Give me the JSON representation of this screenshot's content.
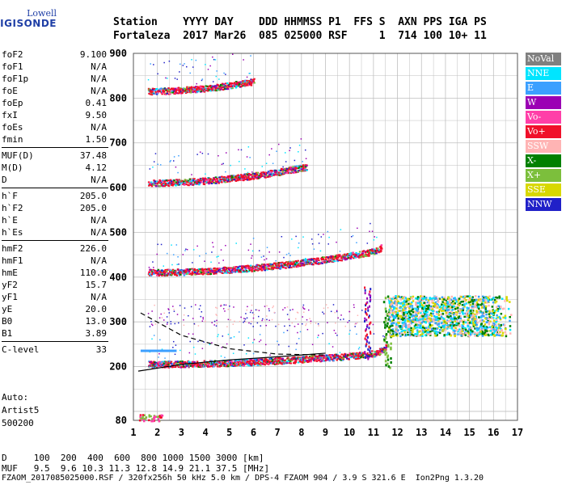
{
  "logo": {
    "top": "Lowell",
    "bottom": "DIGISONDE"
  },
  "header": {
    "line1": "Station    YYYY DAY    DDD HHMMSS P1  FFS S  AXN PPS IGA PS",
    "line2": "Fortaleza  2017 Mar26  085 025000 RSF     1  714 100 10+ 11"
  },
  "params_groups": [
    [
      [
        "foF2",
        "9.100"
      ],
      [
        "foF1",
        "N/A"
      ],
      [
        "foF1p",
        "N/A"
      ],
      [
        "foE",
        "N/A"
      ],
      [
        "foEp",
        "0.41"
      ],
      [
        "fxI",
        "9.50"
      ],
      [
        "foEs",
        "N/A"
      ],
      [
        "fmin",
        "1.50"
      ]
    ],
    [
      [
        "MUF(D)",
        "37.48"
      ],
      [
        "M(D)",
        "4.12"
      ],
      [
        "D",
        "N/A"
      ]
    ],
    [
      [
        "h`F",
        "205.0"
      ],
      [
        "h`F2",
        "205.0"
      ],
      [
        "h`E",
        "N/A"
      ],
      [
        "h`Es",
        "N/A"
      ]
    ],
    [
      [
        "hmF2",
        "226.0"
      ],
      [
        "hmF1",
        "N/A"
      ],
      [
        "hmE",
        "110.0"
      ],
      [
        "yF2",
        "15.7"
      ],
      [
        "yF1",
        "N/A"
      ],
      [
        "yE",
        "20.0"
      ],
      [
        "B0",
        "13.0"
      ],
      [
        "B1",
        "3.89"
      ]
    ],
    [
      [
        "C-level",
        "33"
      ]
    ]
  ],
  "auto": {
    "l1": "Auto:",
    "l2": "Artist5",
    "l3": "500200"
  },
  "legend": [
    {
      "label": "NoVal",
      "color": "#808080"
    },
    {
      "label": "NNE",
      "color": "#00e5ff"
    },
    {
      "label": "E",
      "color": "#3ca0ff"
    },
    {
      "label": "W",
      "color": "#9b00b4"
    },
    {
      "label": "Vo-",
      "color": "#ff3fa8"
    },
    {
      "label": "Vo+",
      "color": "#f0102a"
    },
    {
      "label": "SSW",
      "color": "#ffb4b4"
    },
    {
      "label": "X-",
      "color": "#008000"
    },
    {
      "label": "X+",
      "color": "#7cbf3c"
    },
    {
      "label": "SSE",
      "color": "#d8d800"
    },
    {
      "label": "NNW",
      "color": "#2020c8"
    }
  ],
  "footer": {
    "l1": "D     100  200  400  600  800 1000 1500 3000 [km]",
    "l2": "MUF   9.5  9.6 10.3 11.3 12.8 14.9 21.1 37.5 [MHz]",
    "l3": "FZAOM_2017085025000.RSF / 320fx256h 50 kHz 5.0 km / DPS-4 FZAOM 904 / 3.9 S 321.6 E  Ion2Png 1.3.20"
  },
  "chart_data": {
    "type": "scatter",
    "title": "",
    "xlabel": "",
    "ylabel": "",
    "xlim": [
      1,
      17
    ],
    "ylim": [
      80,
      900
    ],
    "x_ticks": [
      1,
      2,
      3,
      4,
      5,
      6,
      7,
      8,
      9,
      10,
      11,
      12,
      13,
      14,
      15,
      16,
      17
    ],
    "y_ticks": [
      80,
      200,
      300,
      400,
      500,
      600,
      700,
      800,
      900
    ],
    "grid": true,
    "legend_position": "right",
    "traces": [
      {
        "name": "trace_1",
        "y0": 205,
        "a": 0.22,
        "x_end": 11.5,
        "color": "#f0102a"
      },
      {
        "name": "trace_2",
        "y0": 410,
        "a": 0.45,
        "x_end": 11.3,
        "color": "#f0102a"
      },
      {
        "name": "trace_3",
        "y0": 610,
        "a": 0.7,
        "x_end": 8.2,
        "color": "#f0102a"
      },
      {
        "name": "trace_4",
        "y0": 815,
        "a": 0.95,
        "x_end": 6.0,
        "color": "#f0102a"
      }
    ],
    "spread_region": {
      "x": [
        11.6,
        16.8
      ],
      "y": [
        270,
        360
      ],
      "colors": [
        "#ffb4b4",
        "#00e5ff",
        "#3ca0ff",
        "#d8d800",
        "#008000"
      ]
    },
    "low_echo": {
      "x": [
        1.2,
        2.2
      ],
      "y": [
        80,
        95
      ]
    },
    "profile_lines": [
      {
        "name": "profile",
        "points": [
          [
            1.2,
            190
          ],
          [
            3,
            205
          ],
          [
            5,
            215
          ],
          [
            7,
            222
          ],
          [
            9,
            230
          ]
        ]
      },
      {
        "name": "dashed",
        "points": [
          [
            1.3,
            320
          ],
          [
            3,
            270
          ],
          [
            5,
            240
          ],
          [
            7,
            228
          ],
          [
            9,
            226
          ]
        ]
      }
    ]
  }
}
